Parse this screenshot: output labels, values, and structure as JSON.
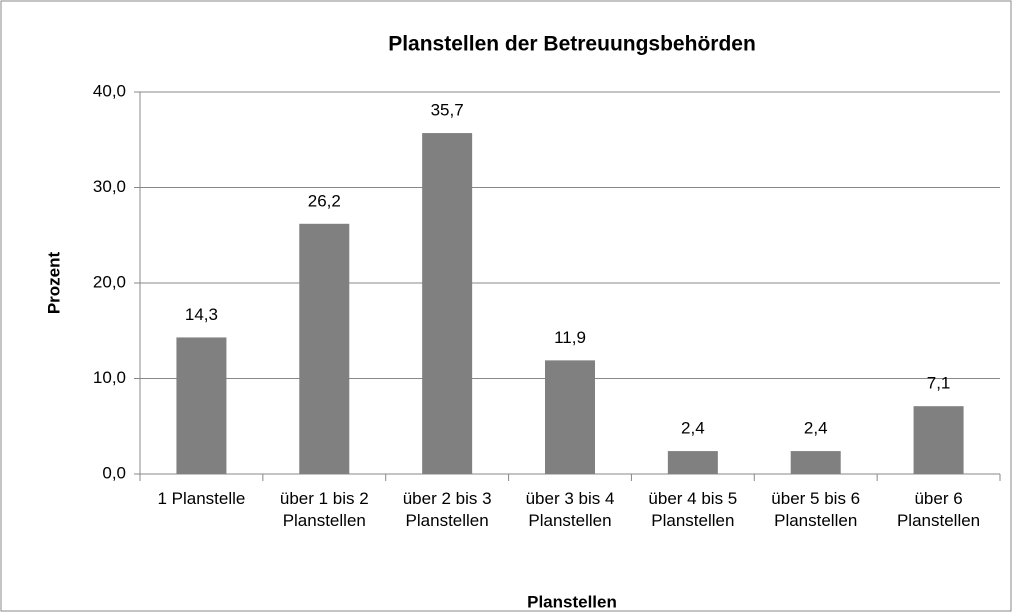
{
  "chart_data": {
    "type": "bar",
    "title": "Planstellen der Betreuungsbehörden",
    "xlabel": "Planstellen",
    "ylabel": "Prozent",
    "categories": [
      "1 Planstelle",
      "über 1 bis 2 Planstellen",
      "über 2 bis 3 Planstellen",
      "über 3 bis 4 Planstellen",
      "über 4 bis 5 Planstellen",
      "über 5 bis 6 Planstellen",
      "über 6 Planstellen"
    ],
    "values": [
      14.3,
      26.2,
      35.7,
      11.9,
      2.4,
      2.4,
      7.1
    ],
    "value_labels": [
      "14,3",
      "26,2",
      "35,7",
      "11,9",
      "2,4",
      "2,4",
      "7,1"
    ],
    "color": "#808080",
    "ylim": [
      0,
      40
    ],
    "yticks": [
      {
        "value": 0,
        "label": "0,0"
      },
      {
        "value": 10,
        "label": "10,0"
      },
      {
        "value": 20,
        "label": "20,0"
      },
      {
        "value": 30,
        "label": "30,0"
      },
      {
        "value": 40,
        "label": "40,0"
      }
    ],
    "grid": true
  }
}
